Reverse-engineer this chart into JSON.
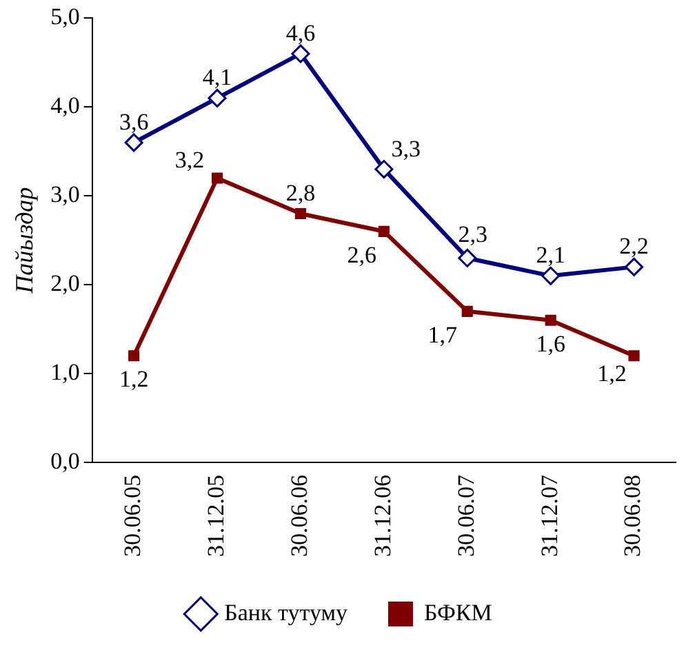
{
  "chart_data": {
    "type": "line",
    "ylabel": "Пайыздар",
    "categories": [
      "30.06.05",
      "31.12.05",
      "30.06.06",
      "31.12.06",
      "30.06.07",
      "31.12.07",
      "30.06.08"
    ],
    "series": [
      {
        "name": "Банк тутуму",
        "color": "#000080",
        "marker": "diamond",
        "values": [
          3.6,
          4.1,
          4.6,
          3.3,
          2.3,
          2.1,
          2.2
        ],
        "value_labels": [
          "3,6",
          "4,1",
          "4,6",
          "3,3",
          "2,3",
          "2,1",
          "2,2"
        ]
      },
      {
        "name": "БФКМ",
        "color": "#800000",
        "marker": "square",
        "values": [
          1.2,
          3.2,
          2.8,
          2.6,
          1.7,
          1.6,
          1.2
        ],
        "value_labels": [
          "1,2",
          "3,2",
          "2,8",
          "2,6",
          "1,7",
          "1,6",
          "1,2"
        ]
      }
    ],
    "ylim": [
      0,
      5
    ],
    "yticks": [
      {
        "value": 0,
        "label": "0,0"
      },
      {
        "value": 1,
        "label": "1,0"
      },
      {
        "value": 2,
        "label": "2,0"
      },
      {
        "value": 3,
        "label": "3,0"
      },
      {
        "value": 4,
        "label": "4,0"
      },
      {
        "value": 5,
        "label": "5,0"
      }
    ],
    "legend": "bottom",
    "grid": false,
    "line_style": "solid"
  }
}
